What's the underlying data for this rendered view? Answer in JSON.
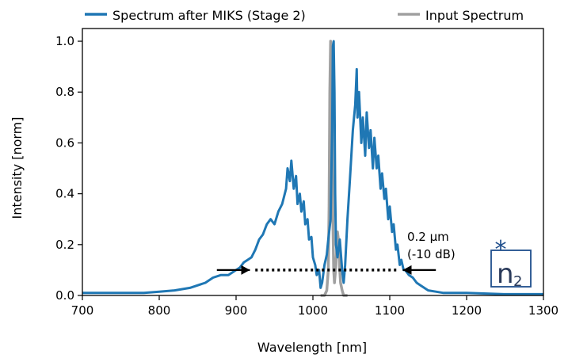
{
  "chart_data": {
    "type": "line",
    "xlabel": "Wavelength [nm]",
    "ylabel": "Intensity [norm]",
    "xlim": [
      700,
      1300
    ],
    "ylim": [
      0,
      1.05
    ],
    "xticks": [
      700,
      800,
      900,
      1000,
      1100,
      1200,
      1300
    ],
    "xtick_labels": [
      "700",
      "800",
      "900",
      "1000",
      "1100",
      "1200",
      "1300"
    ],
    "yticks": [
      0.0,
      0.2,
      0.4,
      0.6,
      0.8,
      1.0
    ],
    "ytick_labels": [
      "0.0",
      "0.2",
      "0.4",
      "0.6",
      "0.8",
      "1.0"
    ],
    "grid": false,
    "legend_position": "top, above plot",
    "series": [
      {
        "name": "Spectrum after MIKS (Stage 2)",
        "color": "#1f77b4",
        "x": [
          700,
          720,
          740,
          760,
          780,
          800,
          820,
          840,
          860,
          870,
          880,
          890,
          900,
          905,
          910,
          915,
          920,
          925,
          930,
          935,
          940,
          945,
          950,
          955,
          960,
          965,
          967,
          970,
          972,
          975,
          978,
          980,
          983,
          985,
          988,
          990,
          993,
          995,
          998,
          1000,
          1003,
          1005,
          1008,
          1010,
          1012,
          1015,
          1018,
          1020,
          1023,
          1025,
          1026,
          1027,
          1028,
          1029,
          1030,
          1032,
          1035,
          1038,
          1040,
          1042,
          1045,
          1048,
          1050,
          1052,
          1055,
          1057,
          1058,
          1060,
          1063,
          1065,
          1068,
          1070,
          1073,
          1075,
          1078,
          1080,
          1083,
          1085,
          1088,
          1090,
          1093,
          1095,
          1098,
          1100,
          1103,
          1105,
          1108,
          1110,
          1113,
          1115,
          1118,
          1120,
          1125,
          1130,
          1135,
          1140,
          1150,
          1160,
          1170,
          1180,
          1200,
          1250,
          1300
        ],
        "y": [
          0.01,
          0.01,
          0.01,
          0.01,
          0.01,
          0.015,
          0.02,
          0.03,
          0.05,
          0.07,
          0.08,
          0.08,
          0.1,
          0.11,
          0.13,
          0.14,
          0.15,
          0.18,
          0.22,
          0.24,
          0.28,
          0.3,
          0.28,
          0.33,
          0.36,
          0.42,
          0.5,
          0.45,
          0.53,
          0.42,
          0.47,
          0.36,
          0.4,
          0.33,
          0.37,
          0.28,
          0.3,
          0.22,
          0.23,
          0.15,
          0.12,
          0.08,
          0.1,
          0.03,
          0.05,
          0.12,
          0.16,
          0.22,
          0.3,
          0.65,
          0.98,
          1.0,
          0.8,
          0.4,
          0.2,
          0.15,
          0.22,
          0.1,
          0.05,
          0.12,
          0.3,
          0.45,
          0.55,
          0.65,
          0.75,
          0.89,
          0.7,
          0.8,
          0.6,
          0.7,
          0.55,
          0.72,
          0.58,
          0.65,
          0.5,
          0.62,
          0.5,
          0.55,
          0.42,
          0.48,
          0.38,
          0.42,
          0.3,
          0.35,
          0.25,
          0.28,
          0.18,
          0.2,
          0.12,
          0.14,
          0.1,
          0.1,
          0.08,
          0.07,
          0.05,
          0.04,
          0.02,
          0.015,
          0.01,
          0.01,
          0.01,
          0.005,
          0.005
        ]
      },
      {
        "name": "Input Spectrum",
        "color": "#a0a0a0",
        "x": [
          1010,
          1015,
          1018,
          1020,
          1021,
          1022,
          1023,
          1024,
          1025,
          1026,
          1027,
          1028,
          1030,
          1032,
          1034,
          1035,
          1036,
          1038,
          1040,
          1045
        ],
        "y": [
          0.0,
          0.0,
          0.02,
          0.1,
          0.35,
          0.8,
          1.0,
          0.95,
          0.6,
          0.3,
          0.1,
          0.05,
          0.12,
          0.25,
          0.2,
          0.1,
          0.05,
          0.02,
          0.0,
          0.0
        ]
      }
    ],
    "annotations": {
      "width_text_line1": "0.2 μm",
      "width_text_line2": "(-10 dB)",
      "bar_y": 0.1,
      "bar_x": [
        925,
        1110
      ],
      "left_arrow_x": [
        875,
        918
      ],
      "right_arrow_x": [
        1160,
        1117
      ],
      "logo_text": "n",
      "logo_subscript": "2",
      "logo_star": "*",
      "logo_color": "#1f4e8c"
    }
  }
}
